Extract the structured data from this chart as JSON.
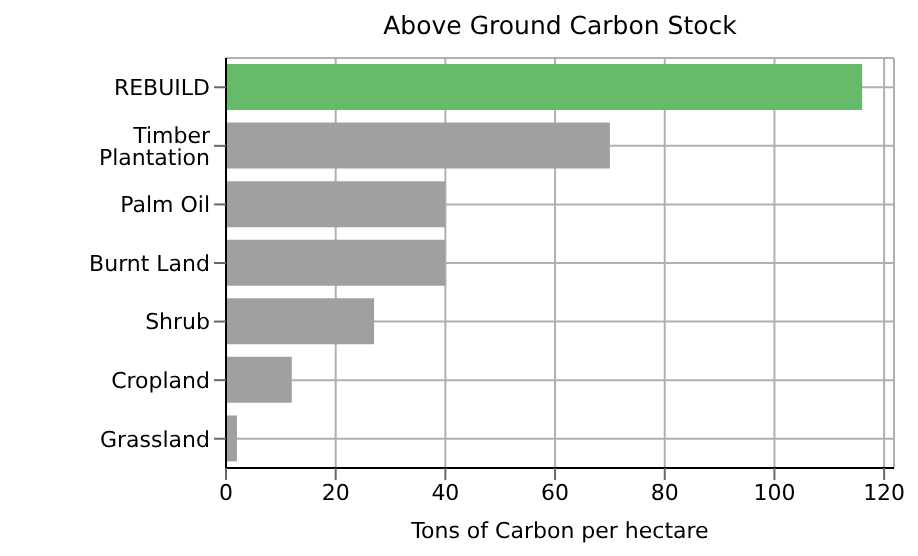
{
  "chart_data": {
    "type": "bar",
    "orientation": "horizontal",
    "title": "Above Ground Carbon Stock",
    "xlabel": "Tons of Carbon per hectare",
    "categories": [
      "REBUILD",
      "Timber Plantation",
      "Palm Oil",
      "Burnt Land",
      "Shrub",
      "Cropland",
      "Grassland"
    ],
    "values": [
      116,
      70,
      40,
      40,
      27,
      12,
      2
    ],
    "colors": [
      "#66bb6a",
      "#a0a0a0",
      "#a0a0a0",
      "#a0a0a0",
      "#a0a0a0",
      "#a0a0a0",
      "#a0a0a0"
    ],
    "xlim": [
      0,
      121.8
    ],
    "xticks": [
      0,
      20,
      40,
      60,
      80,
      100,
      120
    ],
    "grid": true
  }
}
